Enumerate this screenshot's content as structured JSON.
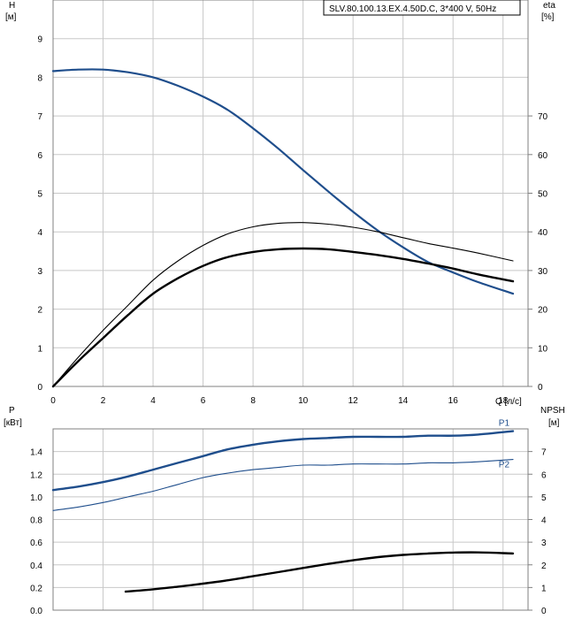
{
  "chart_data": [
    {
      "type": "line",
      "panel": "head-efficiency",
      "title": "SLV.80.100.13.EX.4.50D.C, 3*400 V, 50Hz",
      "xlabel": "Q [л/с]",
      "ylabel_left": [
        "H",
        "[м]"
      ],
      "ylabel_right": [
        "eta",
        "[%]"
      ],
      "xlim": [
        0,
        19
      ],
      "ylim_left": [
        0,
        10
      ],
      "ylim_right": [
        0,
        100
      ],
      "x_ticks": [
        "0",
        "2",
        "4",
        "6",
        "8",
        "10",
        "12",
        "14",
        "16",
        "18"
      ],
      "y_ticks_left": [
        "0",
        "1",
        "2",
        "3",
        "4",
        "5",
        "6",
        "7",
        "8",
        "9"
      ],
      "y_ticks_right": [
        "0",
        "10",
        "20",
        "30",
        "40",
        "50",
        "60",
        "70"
      ],
      "grid": true,
      "series": [
        {
          "axis": "left",
          "color": "#1f4e8c",
          "stroke": 2.2,
          "points": [
            [
              0,
              8.16
            ],
            [
              1,
              8.2
            ],
            [
              2,
              8.2
            ],
            [
              3,
              8.13
            ],
            [
              4,
              8.0
            ],
            [
              5,
              7.78
            ],
            [
              6,
              7.5
            ],
            [
              7,
              7.15
            ],
            [
              8,
              6.68
            ],
            [
              9,
              6.16
            ],
            [
              10,
              5.6
            ],
            [
              11,
              5.05
            ],
            [
              12,
              4.52
            ],
            [
              13,
              4.03
            ],
            [
              14,
              3.6
            ],
            [
              15,
              3.22
            ],
            [
              16,
              2.95
            ],
            [
              17,
              2.7
            ],
            [
              18.4,
              2.4
            ]
          ]
        },
        {
          "axis": "right",
          "color": "#000000",
          "stroke": 1.1,
          "points": [
            [
              0,
              0
            ],
            [
              1,
              7.5
            ],
            [
              2,
              14.5
            ],
            [
              3,
              21
            ],
            [
              4,
              27.5
            ],
            [
              5,
              32.5
            ],
            [
              6,
              36.5
            ],
            [
              7,
              39.5
            ],
            [
              8,
              41.3
            ],
            [
              9,
              42.2
            ],
            [
              10,
              42.4
            ],
            [
              11,
              42
            ],
            [
              12,
              41.2
            ],
            [
              13,
              40
            ],
            [
              14,
              38.5
            ],
            [
              15,
              37
            ],
            [
              16,
              35.8
            ],
            [
              17,
              34.5
            ],
            [
              18.4,
              32.5
            ]
          ]
        },
        {
          "axis": "right",
          "color": "#000000",
          "stroke": 2.4,
          "points": [
            [
              0,
              0
            ],
            [
              1,
              6.5
            ],
            [
              2,
              12.5
            ],
            [
              3,
              18.5
            ],
            [
              4,
              24
            ],
            [
              5,
              28
            ],
            [
              6,
              31.2
            ],
            [
              7,
              33.5
            ],
            [
              8,
              34.8
            ],
            [
              9,
              35.5
            ],
            [
              10,
              35.7
            ],
            [
              11,
              35.5
            ],
            [
              12,
              34.8
            ],
            [
              13,
              34
            ],
            [
              14,
              33
            ],
            [
              15,
              31.8
            ],
            [
              16,
              30.5
            ],
            [
              17,
              29
            ],
            [
              18.4,
              27.2
            ]
          ]
        }
      ]
    },
    {
      "type": "line",
      "panel": "power-npsh",
      "xlim": [
        0,
        19
      ],
      "ylabel_left": [
        "P",
        "[кВт]"
      ],
      "ylabel_right": [
        "NPSH",
        "[м]"
      ],
      "ylim_left": [
        0,
        1.6
      ],
      "ylim_right": [
        0,
        8
      ],
      "y_ticks_left": [
        "0.0",
        "0.2",
        "0.4",
        "0.6",
        "0.8",
        "1.0",
        "1.2",
        "1.4"
      ],
      "y_ticks_right": [
        "0",
        "1",
        "2",
        "3",
        "4",
        "5",
        "6",
        "7"
      ],
      "grid": true,
      "series": [
        {
          "name": "P1",
          "axis": "left",
          "color": "#1f4e8c",
          "stroke": 2.4,
          "points": [
            [
              0,
              1.06
            ],
            [
              1,
              1.09
            ],
            [
              2,
              1.13
            ],
            [
              3,
              1.18
            ],
            [
              4,
              1.24
            ],
            [
              5,
              1.3
            ],
            [
              6,
              1.36
            ],
            [
              7,
              1.42
            ],
            [
              8,
              1.46
            ],
            [
              9,
              1.49
            ],
            [
              10,
              1.51
            ],
            [
              11,
              1.52
            ],
            [
              12,
              1.53
            ],
            [
              13,
              1.53
            ],
            [
              14,
              1.53
            ],
            [
              15,
              1.54
            ],
            [
              16,
              1.54
            ],
            [
              17,
              1.55
            ],
            [
              18.4,
              1.58
            ]
          ]
        },
        {
          "name": "P2",
          "axis": "left",
          "color": "#1f4e8c",
          "stroke": 1.1,
          "points": [
            [
              0,
              0.88
            ],
            [
              1,
              0.91
            ],
            [
              2,
              0.95
            ],
            [
              3,
              1.0
            ],
            [
              4,
              1.05
            ],
            [
              5,
              1.11
            ],
            [
              6,
              1.17
            ],
            [
              7,
              1.21
            ],
            [
              8,
              1.24
            ],
            [
              9,
              1.26
            ],
            [
              10,
              1.28
            ],
            [
              11,
              1.28
            ],
            [
              12,
              1.29
            ],
            [
              13,
              1.29
            ],
            [
              14,
              1.29
            ],
            [
              15,
              1.3
            ],
            [
              16,
              1.3
            ],
            [
              17,
              1.31
            ],
            [
              18.4,
              1.33
            ]
          ]
        },
        {
          "axis": "right",
          "color": "#000000",
          "stroke": 2.4,
          "points": [
            [
              2.9,
              0.82
            ],
            [
              4,
              0.92
            ],
            [
              5,
              1.04
            ],
            [
              6,
              1.17
            ],
            [
              7,
              1.32
            ],
            [
              8,
              1.5
            ],
            [
              9,
              1.68
            ],
            [
              10,
              1.86
            ],
            [
              11,
              2.04
            ],
            [
              12,
              2.2
            ],
            [
              13,
              2.34
            ],
            [
              14,
              2.44
            ],
            [
              15,
              2.5
            ],
            [
              16,
              2.54
            ],
            [
              17,
              2.55
            ],
            [
              18.4,
              2.5
            ]
          ]
        }
      ]
    }
  ]
}
